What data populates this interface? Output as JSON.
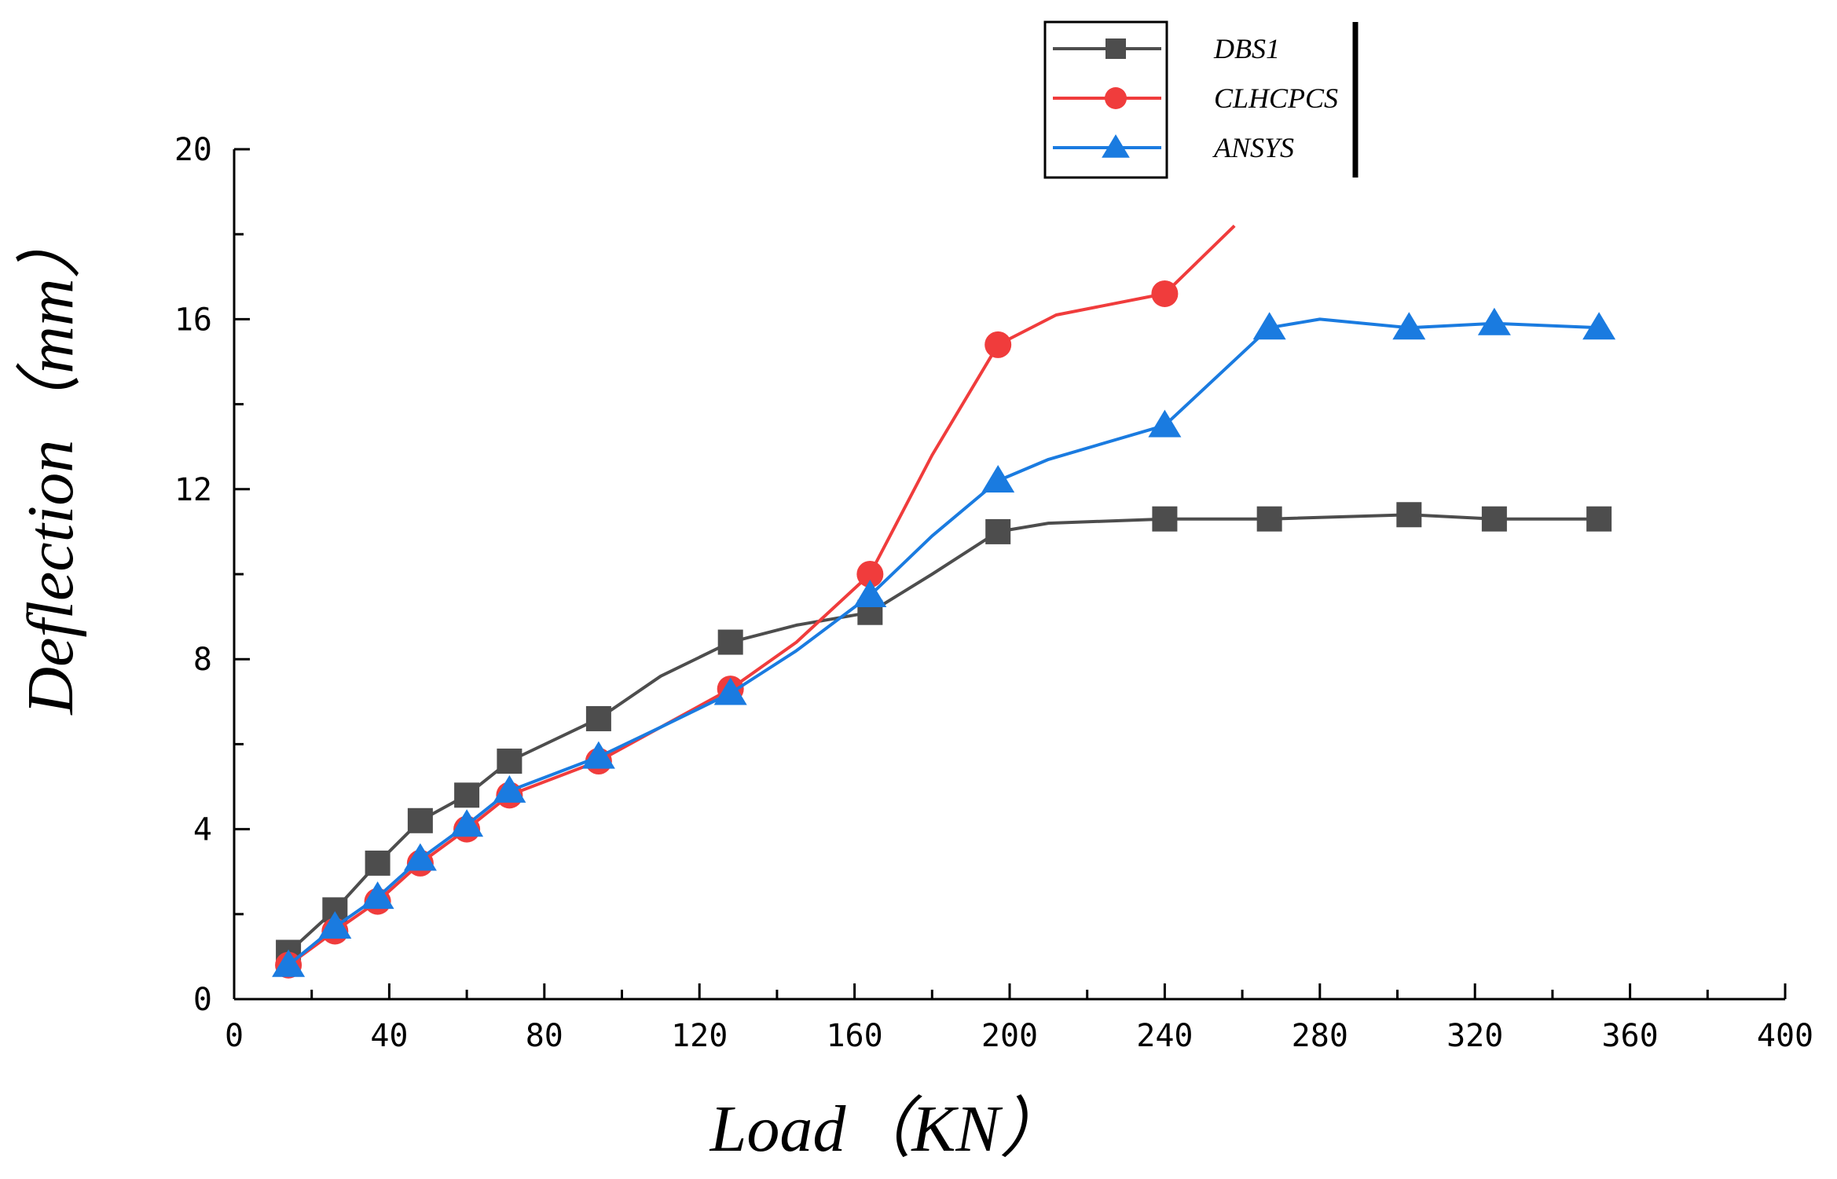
{
  "chart_data": {
    "type": "line",
    "title": "",
    "xlabel": "Load（KN）",
    "ylabel": "Deflection（mm）",
    "xlim": [
      0,
      400
    ],
    "ylim": [
      0,
      20
    ],
    "x_ticks": [
      0,
      40,
      80,
      120,
      160,
      200,
      240,
      280,
      320,
      360,
      400
    ],
    "y_ticks": [
      0,
      4,
      8,
      12,
      16,
      20
    ],
    "grid": false,
    "legend_position": "top-right",
    "colors": {
      "DBS1": "#4d4d4d",
      "CLHCPCS": "#f03c3c",
      "ANSYS": "#1a7be0"
    },
    "series": [
      {
        "name": "DBS1",
        "marker": "square",
        "x": [
          14,
          26,
          37,
          48,
          60,
          71,
          94,
          128,
          164,
          197,
          240,
          267,
          303,
          325,
          352
        ],
        "y": [
          1.1,
          2.1,
          3.2,
          4.2,
          4.8,
          5.6,
          6.6,
          8.4,
          9.1,
          11.0,
          11.3,
          11.3,
          11.4,
          11.3,
          11.3
        ],
        "curve_points": [
          [
            14,
            1.1
          ],
          [
            26,
            2.1
          ],
          [
            37,
            3.2
          ],
          [
            48,
            4.2
          ],
          [
            60,
            4.8
          ],
          [
            71,
            5.6
          ],
          [
            94,
            6.6
          ],
          [
            110,
            7.6
          ],
          [
            128,
            8.4
          ],
          [
            145,
            8.8
          ],
          [
            164,
            9.1
          ],
          [
            180,
            10.0
          ],
          [
            197,
            11.0
          ],
          [
            210,
            11.2
          ],
          [
            240,
            11.3
          ],
          [
            267,
            11.3
          ],
          [
            303,
            11.4
          ],
          [
            325,
            11.3
          ],
          [
            352,
            11.3
          ]
        ]
      },
      {
        "name": "CLHCPCS",
        "marker": "circle",
        "x": [
          14,
          26,
          37,
          48,
          60,
          71,
          94,
          128,
          164,
          197,
          240
        ],
        "y": [
          0.8,
          1.6,
          2.3,
          3.2,
          4.0,
          4.8,
          5.6,
          7.3,
          10.0,
          15.4,
          16.6
        ],
        "curve_points": [
          [
            14,
            0.8
          ],
          [
            26,
            1.6
          ],
          [
            37,
            2.3
          ],
          [
            48,
            3.2
          ],
          [
            60,
            4.0
          ],
          [
            71,
            4.8
          ],
          [
            94,
            5.6
          ],
          [
            110,
            6.4
          ],
          [
            128,
            7.3
          ],
          [
            145,
            8.4
          ],
          [
            164,
            10.0
          ],
          [
            180,
            12.8
          ],
          [
            197,
            15.4
          ],
          [
            212,
            16.1
          ],
          [
            240,
            16.6
          ],
          [
            258,
            18.2
          ]
        ]
      },
      {
        "name": "ANSYS",
        "marker": "triangle",
        "x": [
          14,
          26,
          37,
          48,
          60,
          71,
          94,
          128,
          164,
          197,
          240,
          267,
          303,
          325,
          352
        ],
        "y": [
          0.8,
          1.7,
          2.4,
          3.3,
          4.1,
          4.9,
          5.7,
          7.2,
          9.5,
          12.2,
          13.5,
          15.8,
          15.8,
          15.9,
          15.8
        ],
        "curve_points": [
          [
            14,
            0.8
          ],
          [
            26,
            1.7
          ],
          [
            37,
            2.4
          ],
          [
            48,
            3.3
          ],
          [
            60,
            4.1
          ],
          [
            71,
            4.9
          ],
          [
            94,
            5.7
          ],
          [
            110,
            6.4
          ],
          [
            128,
            7.2
          ],
          [
            145,
            8.2
          ],
          [
            164,
            9.5
          ],
          [
            180,
            10.9
          ],
          [
            197,
            12.2
          ],
          [
            210,
            12.7
          ],
          [
            240,
            13.5
          ],
          [
            267,
            15.8
          ],
          [
            280,
            16.0
          ],
          [
            303,
            15.8
          ],
          [
            325,
            15.9
          ],
          [
            352,
            15.8
          ]
        ]
      }
    ]
  }
}
